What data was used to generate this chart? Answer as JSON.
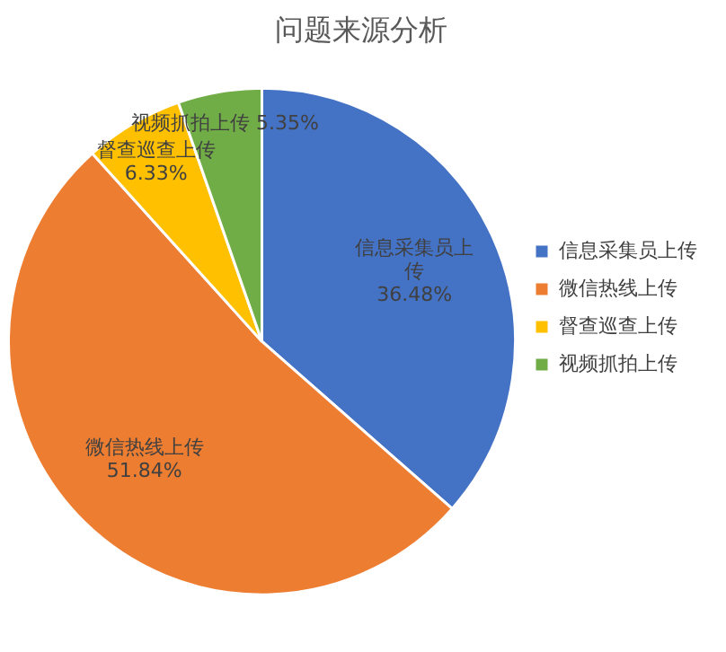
{
  "chart_data": {
    "type": "pie",
    "title": "问题来源分析",
    "categories": [
      "信息采集员上传",
      "微信热线上传",
      "督查巡查上传",
      "视频抓拍上传"
    ],
    "values": [
      36.48,
      51.84,
      6.33,
      5.35
    ],
    "colors": [
      "#4472c4",
      "#ed7d31",
      "#ffc000",
      "#70ad47"
    ],
    "value_labels": [
      "36.48%",
      "51.84%",
      "6.33%",
      "5.35%"
    ],
    "legend": "right"
  }
}
